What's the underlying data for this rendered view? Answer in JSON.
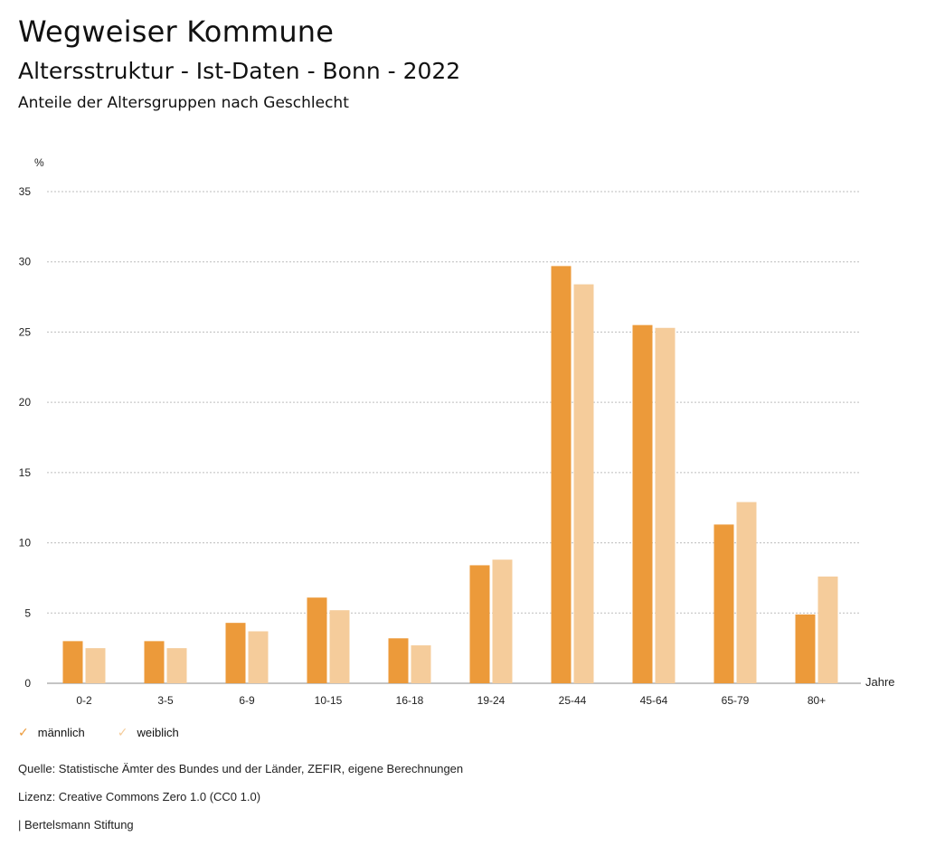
{
  "header": {
    "title": "Wegweiser Kommune",
    "subtitle": "Altersstruktur - Ist-Daten - Bonn - 2022",
    "caption": "Anteile der Altersgruppen nach Geschlecht"
  },
  "chart_data": {
    "type": "bar",
    "ylabel": "%",
    "xlabel": "Jahre",
    "ylim": [
      0,
      35
    ],
    "yticks": [
      0,
      5,
      10,
      15,
      20,
      25,
      30,
      35
    ],
    "grid": true,
    "legend_position": "bottom-left",
    "categories": [
      "0-2",
      "3-5",
      "6-9",
      "10-15",
      "16-18",
      "19-24",
      "25-44",
      "45-64",
      "65-79",
      "80+"
    ],
    "series": [
      {
        "name": "männlich",
        "color": "#ec9a3a",
        "values": [
          3.0,
          3.0,
          4.3,
          6.1,
          3.2,
          8.4,
          29.7,
          25.5,
          11.3,
          4.9
        ]
      },
      {
        "name": "weiblich",
        "color": "#f5cc9b",
        "values": [
          2.5,
          2.5,
          3.7,
          5.2,
          2.7,
          8.8,
          28.4,
          25.3,
          12.9,
          7.6
        ]
      }
    ]
  },
  "legend": [
    {
      "label": "männlich",
      "color": "#ec9a3a",
      "icon": "check-icon"
    },
    {
      "label": "weiblich",
      "color": "#f5cc9b",
      "icon": "check-icon"
    }
  ],
  "footer": {
    "source": "Quelle: Statistische Ämter des Bundes und der Länder, ZEFIR, eigene Berechnungen",
    "license": "Lizenz: Creative Commons Zero 1.0 (CC0 1.0)",
    "publisher": "| Bertelsmann Stiftung"
  }
}
